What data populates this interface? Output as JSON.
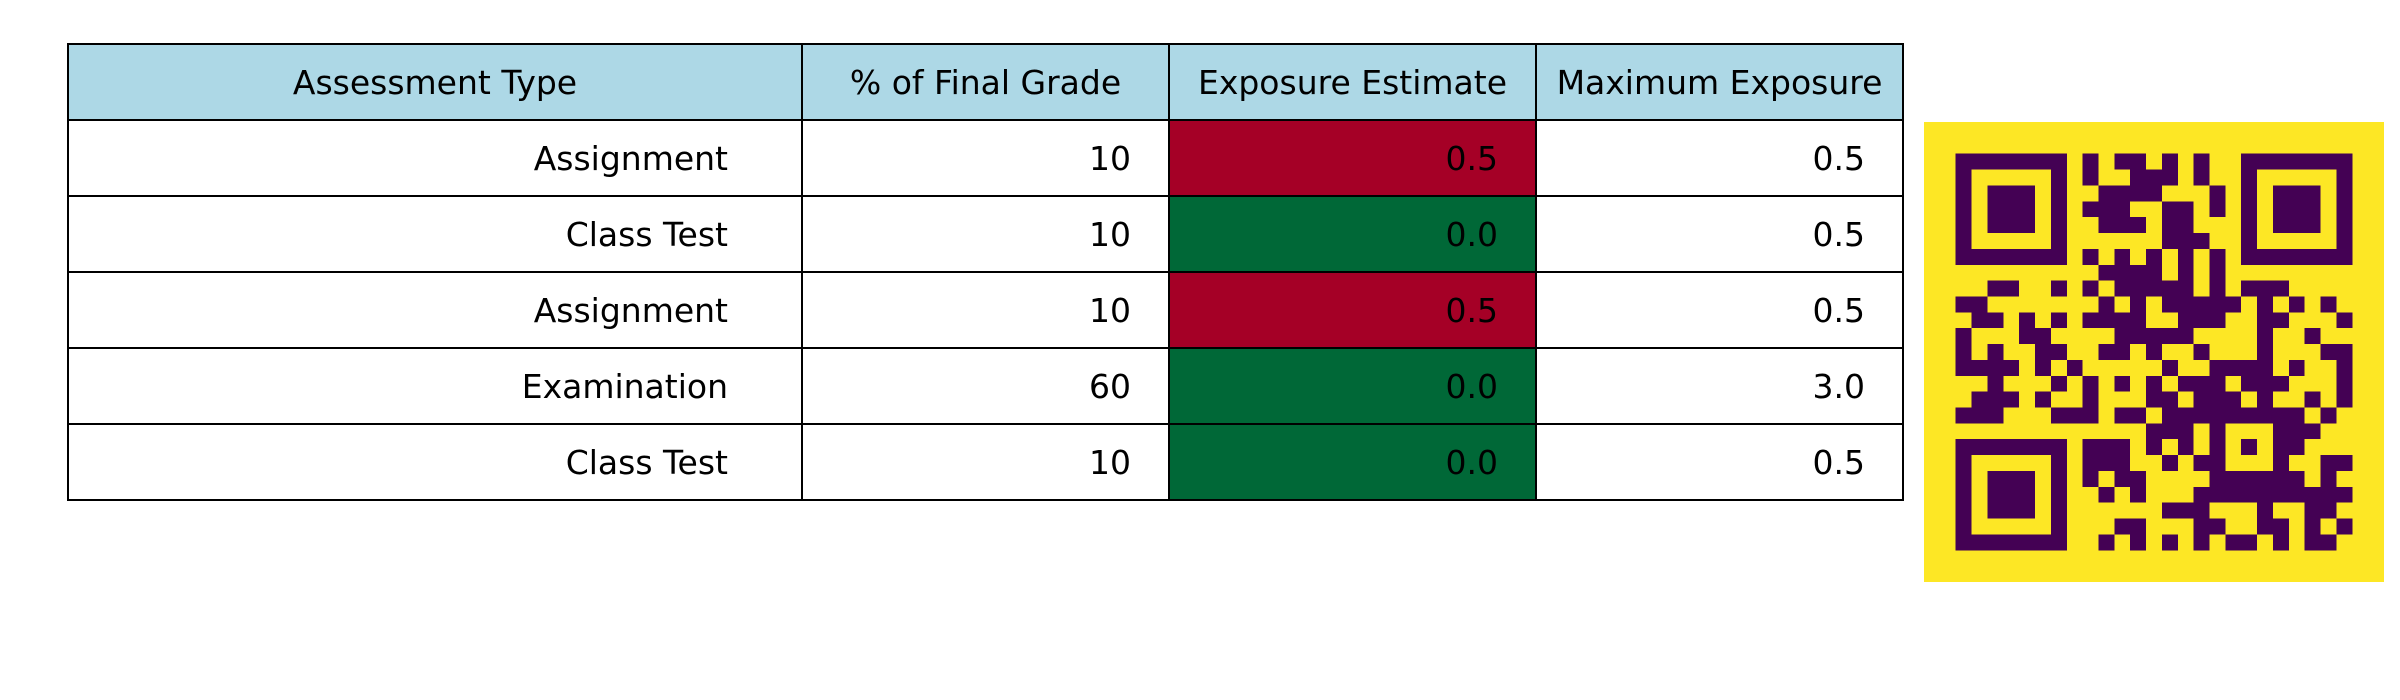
{
  "chart_data": {
    "type": "table",
    "header_color": "#add8e6",
    "columns": [
      "Assessment Type",
      "% of Final Grade",
      "Exposure Estimate",
      "Maximum Exposure"
    ],
    "rows": [
      {
        "type": "Assignment",
        "percent": "10",
        "estimate": "0.5",
        "max": "0.5",
        "highlight": "#a50026"
      },
      {
        "type": "Class Test",
        "percent": "10",
        "estimate": "0.0",
        "max": "0.5",
        "highlight": "#006837"
      },
      {
        "type": "Assignment",
        "percent": "10",
        "estimate": "0.5",
        "max": "0.5",
        "highlight": "#a50026"
      },
      {
        "type": "Examination",
        "percent": "60",
        "estimate": "0.0",
        "max": "3.0",
        "highlight": "#006837"
      },
      {
        "type": "Class Test",
        "percent": "10",
        "estimate": "0.0",
        "max": "0.5",
        "highlight": "#006837"
      }
    ]
  },
  "qr_code": {
    "background_color": "#fde725",
    "module_color": "#440154"
  }
}
